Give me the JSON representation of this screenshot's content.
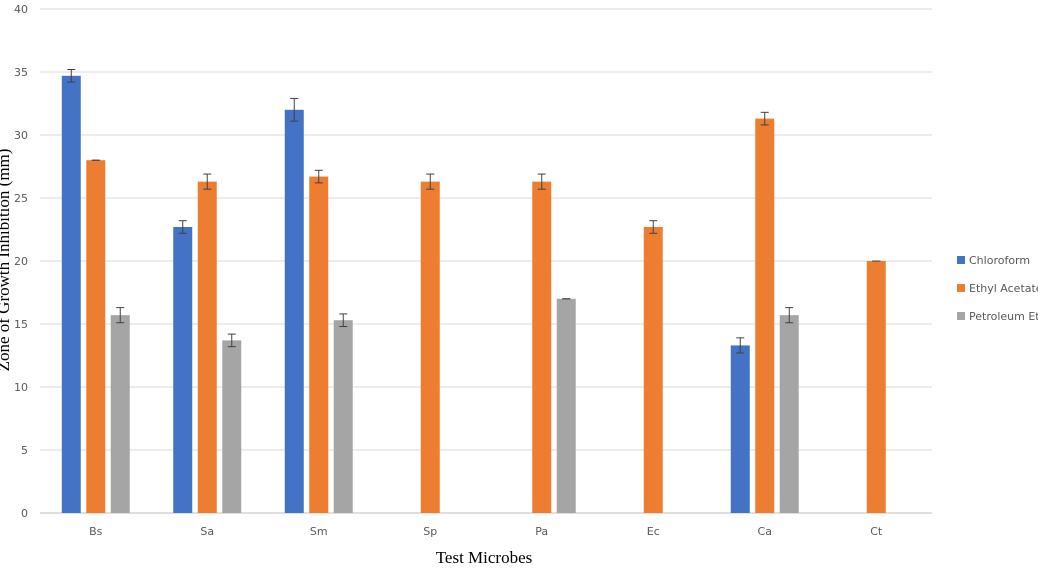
{
  "chart_data": {
    "type": "bar",
    "title": "",
    "xlabel": "Test Microbes",
    "ylabel": "Zone of Growth Inhibition (mm)",
    "ylim": [
      0,
      40
    ],
    "yticks": [
      0,
      5,
      10,
      15,
      20,
      25,
      30,
      35,
      40
    ],
    "grid": true,
    "legend_position": "right",
    "categories": [
      "Bs",
      "Sa",
      "Sm",
      "Sp",
      "Pa",
      "Ec",
      "Ca",
      "Ct"
    ],
    "series": [
      {
        "name": "Chloroform",
        "color": "#4472C4",
        "values": [
          34.7,
          22.7,
          32.0,
          null,
          null,
          null,
          13.3,
          null
        ],
        "errors": [
          0.5,
          0.5,
          0.9,
          null,
          null,
          null,
          0.6,
          null
        ]
      },
      {
        "name": "Ethyl Acetate",
        "color": "#ED7D31",
        "values": [
          28.0,
          26.3,
          26.7,
          26.3,
          26.3,
          22.7,
          31.3,
          20.0
        ],
        "errors": [
          0,
          0.6,
          0.5,
          0.6,
          0.6,
          0.5,
          0.5,
          0
        ]
      },
      {
        "name": "Petroleum Ether",
        "color": "#A5A5A5",
        "values": [
          15.7,
          13.7,
          15.3,
          null,
          17.0,
          null,
          15.7,
          null
        ],
        "errors": [
          0.6,
          0.5,
          0.5,
          null,
          0,
          null,
          0.6,
          null
        ]
      }
    ]
  }
}
